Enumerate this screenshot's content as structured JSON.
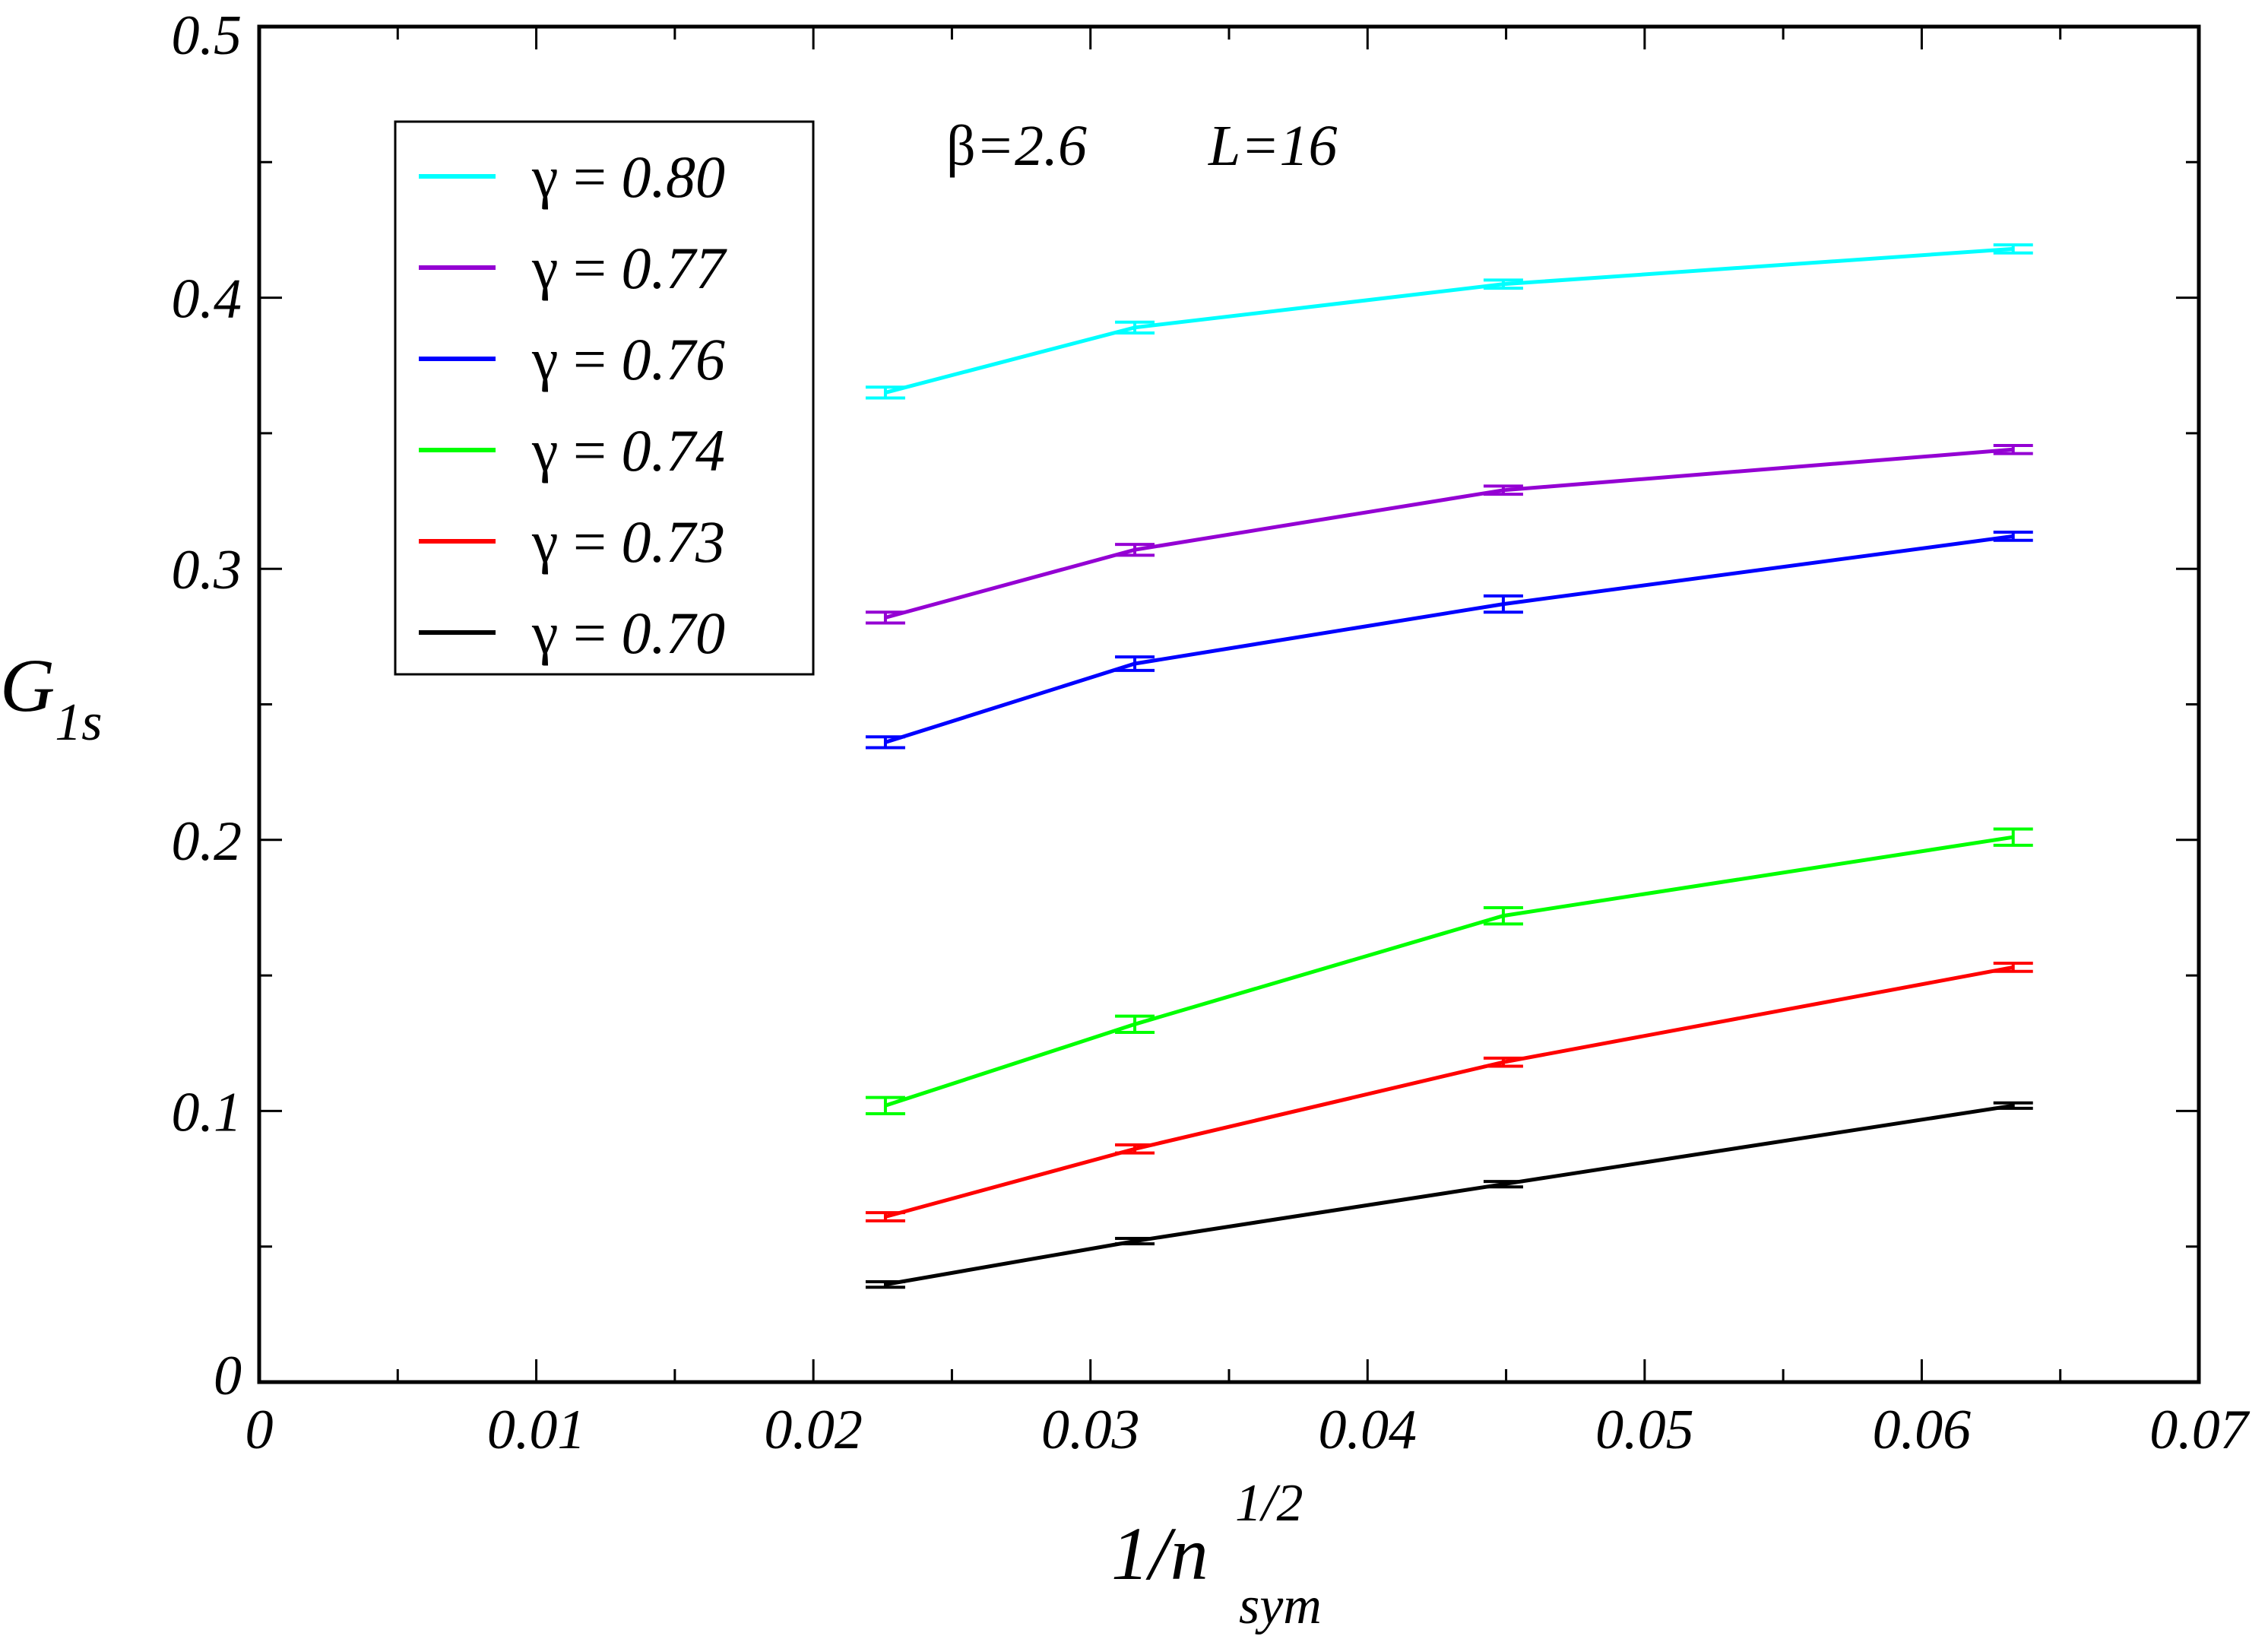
{
  "chart_data": {
    "type": "line",
    "title": "",
    "annotation": {
      "beta_symbol": "β",
      "beta_value": "=2.6",
      "lattice": "L=16"
    },
    "xlabel": {
      "main": "1/n",
      "superscript": "1/2",
      "subscript": "sym"
    },
    "ylabel": {
      "main": "G",
      "subscript": "1s"
    },
    "xlim": [
      0,
      0.07
    ],
    "ylim": [
      0,
      0.5
    ],
    "x_ticks": [
      {
        "value": 0,
        "label": "0"
      },
      {
        "value": 0.01,
        "label": "0.01"
      },
      {
        "value": 0.02,
        "label": "0.02"
      },
      {
        "value": 0.03,
        "label": "0.03"
      },
      {
        "value": 0.04,
        "label": "0.04"
      },
      {
        "value": 0.05,
        "label": "0.05"
      },
      {
        "value": 0.06,
        "label": "0.06"
      },
      {
        "value": 0.07,
        "label": "0.07"
      }
    ],
    "y_ticks": [
      {
        "value": 0,
        "label": "0"
      },
      {
        "value": 0.1,
        "label": "0.1"
      },
      {
        "value": 0.2,
        "label": "0.2"
      },
      {
        "value": 0.3,
        "label": "0.3"
      },
      {
        "value": 0.4,
        "label": "0.4"
      },
      {
        "value": 0.5,
        "label": "0.5"
      }
    ],
    "x_minor_step": 0.005,
    "y_minor_step": 0.05,
    "legend_position": "top-left",
    "x": [
      0.0226,
      0.0316,
      0.0449,
      0.0633
    ],
    "series": [
      {
        "name": "γ = 0.80",
        "symbol": "γ",
        "label": "= 0.80",
        "color": "#00ffff",
        "values": [
          0.365,
          0.389,
          0.405,
          0.418
        ],
        "errors": [
          0.002,
          0.002,
          0.0015,
          0.0015
        ]
      },
      {
        "name": "γ = 0.77",
        "symbol": "γ",
        "label": "= 0.77",
        "color": "#9400d3",
        "values": [
          0.282,
          0.307,
          0.329,
          0.344
        ],
        "errors": [
          0.002,
          0.002,
          0.0015,
          0.0015
        ]
      },
      {
        "name": "γ = 0.76",
        "symbol": "γ",
        "label": "= 0.76",
        "color": "#0000ff",
        "values": [
          0.236,
          0.265,
          0.287,
          0.312
        ],
        "errors": [
          0.002,
          0.0025,
          0.003,
          0.0015
        ]
      },
      {
        "name": "γ = 0.74",
        "symbol": "γ",
        "label": "= 0.74",
        "color": "#00ff00",
        "values": [
          0.102,
          0.132,
          0.172,
          0.201
        ],
        "errors": [
          0.003,
          0.003,
          0.003,
          0.003
        ]
      },
      {
        "name": "γ = 0.73",
        "symbol": "γ",
        "label": "= 0.73",
        "color": "#ff0000",
        "values": [
          0.061,
          0.086,
          0.118,
          0.153
        ],
        "errors": [
          0.0015,
          0.0015,
          0.0015,
          0.0015
        ]
      },
      {
        "name": "γ = 0.70",
        "symbol": "γ",
        "label": "= 0.70",
        "color": "#000000",
        "values": [
          0.036,
          0.052,
          0.073,
          0.102
        ],
        "errors": [
          0.001,
          0.001,
          0.001,
          0.001
        ]
      }
    ]
  }
}
